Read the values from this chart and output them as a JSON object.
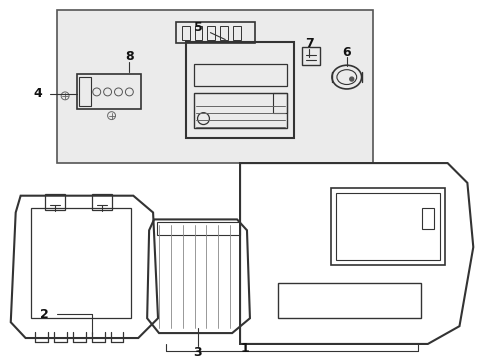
{
  "bg_color": "#ffffff",
  "inset_bg": "#ebebeb",
  "line_color": "#333333",
  "figsize": [
    4.89,
    3.6
  ],
  "dpi": 100
}
